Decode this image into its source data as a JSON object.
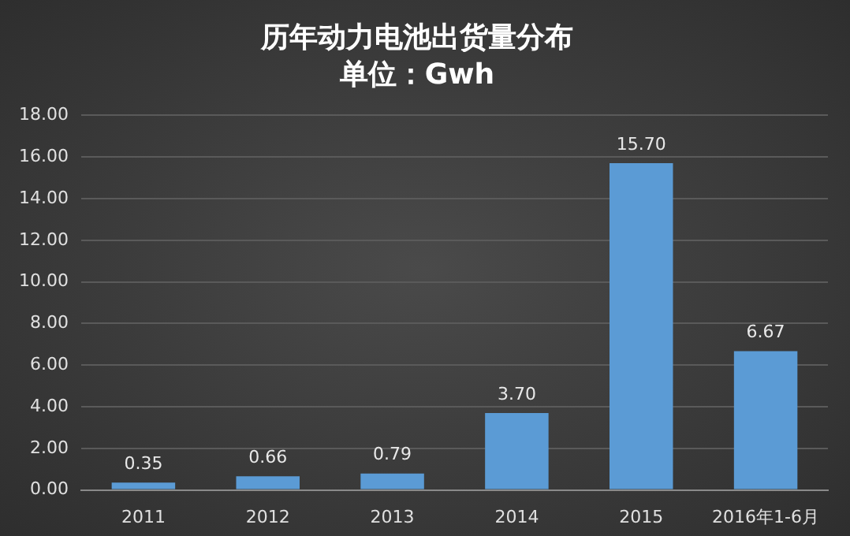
{
  "chart_data": {
    "type": "bar",
    "title": "历年动力电池出货量分布",
    "subtitle": "单位：Gwh",
    "categories": [
      "2011",
      "2012",
      "2013",
      "2014",
      "2015",
      "2016年1-6月"
    ],
    "values": [
      0.35,
      0.66,
      0.79,
      3.7,
      15.7,
      6.67
    ],
    "color": "#5b9bd5",
    "ylim": [
      0,
      18
    ],
    "yticks": [
      {
        "value": 0,
        "label": "0.00"
      },
      {
        "value": 2,
        "label": "2.00"
      },
      {
        "value": 4,
        "label": "4.00"
      },
      {
        "value": 6,
        "label": "6.00"
      },
      {
        "value": 8,
        "label": "8.00"
      },
      {
        "value": 10,
        "label": "10.00"
      },
      {
        "value": 12,
        "label": "12.00"
      },
      {
        "value": 14,
        "label": "14.00"
      },
      {
        "value": 16,
        "label": "16.00"
      },
      {
        "value": 18,
        "label": "18.00"
      }
    ],
    "grid": "y",
    "value_labels": [
      "0.35",
      "0.66",
      "0.79",
      "3.70",
      "15.70",
      "6.67"
    ]
  }
}
